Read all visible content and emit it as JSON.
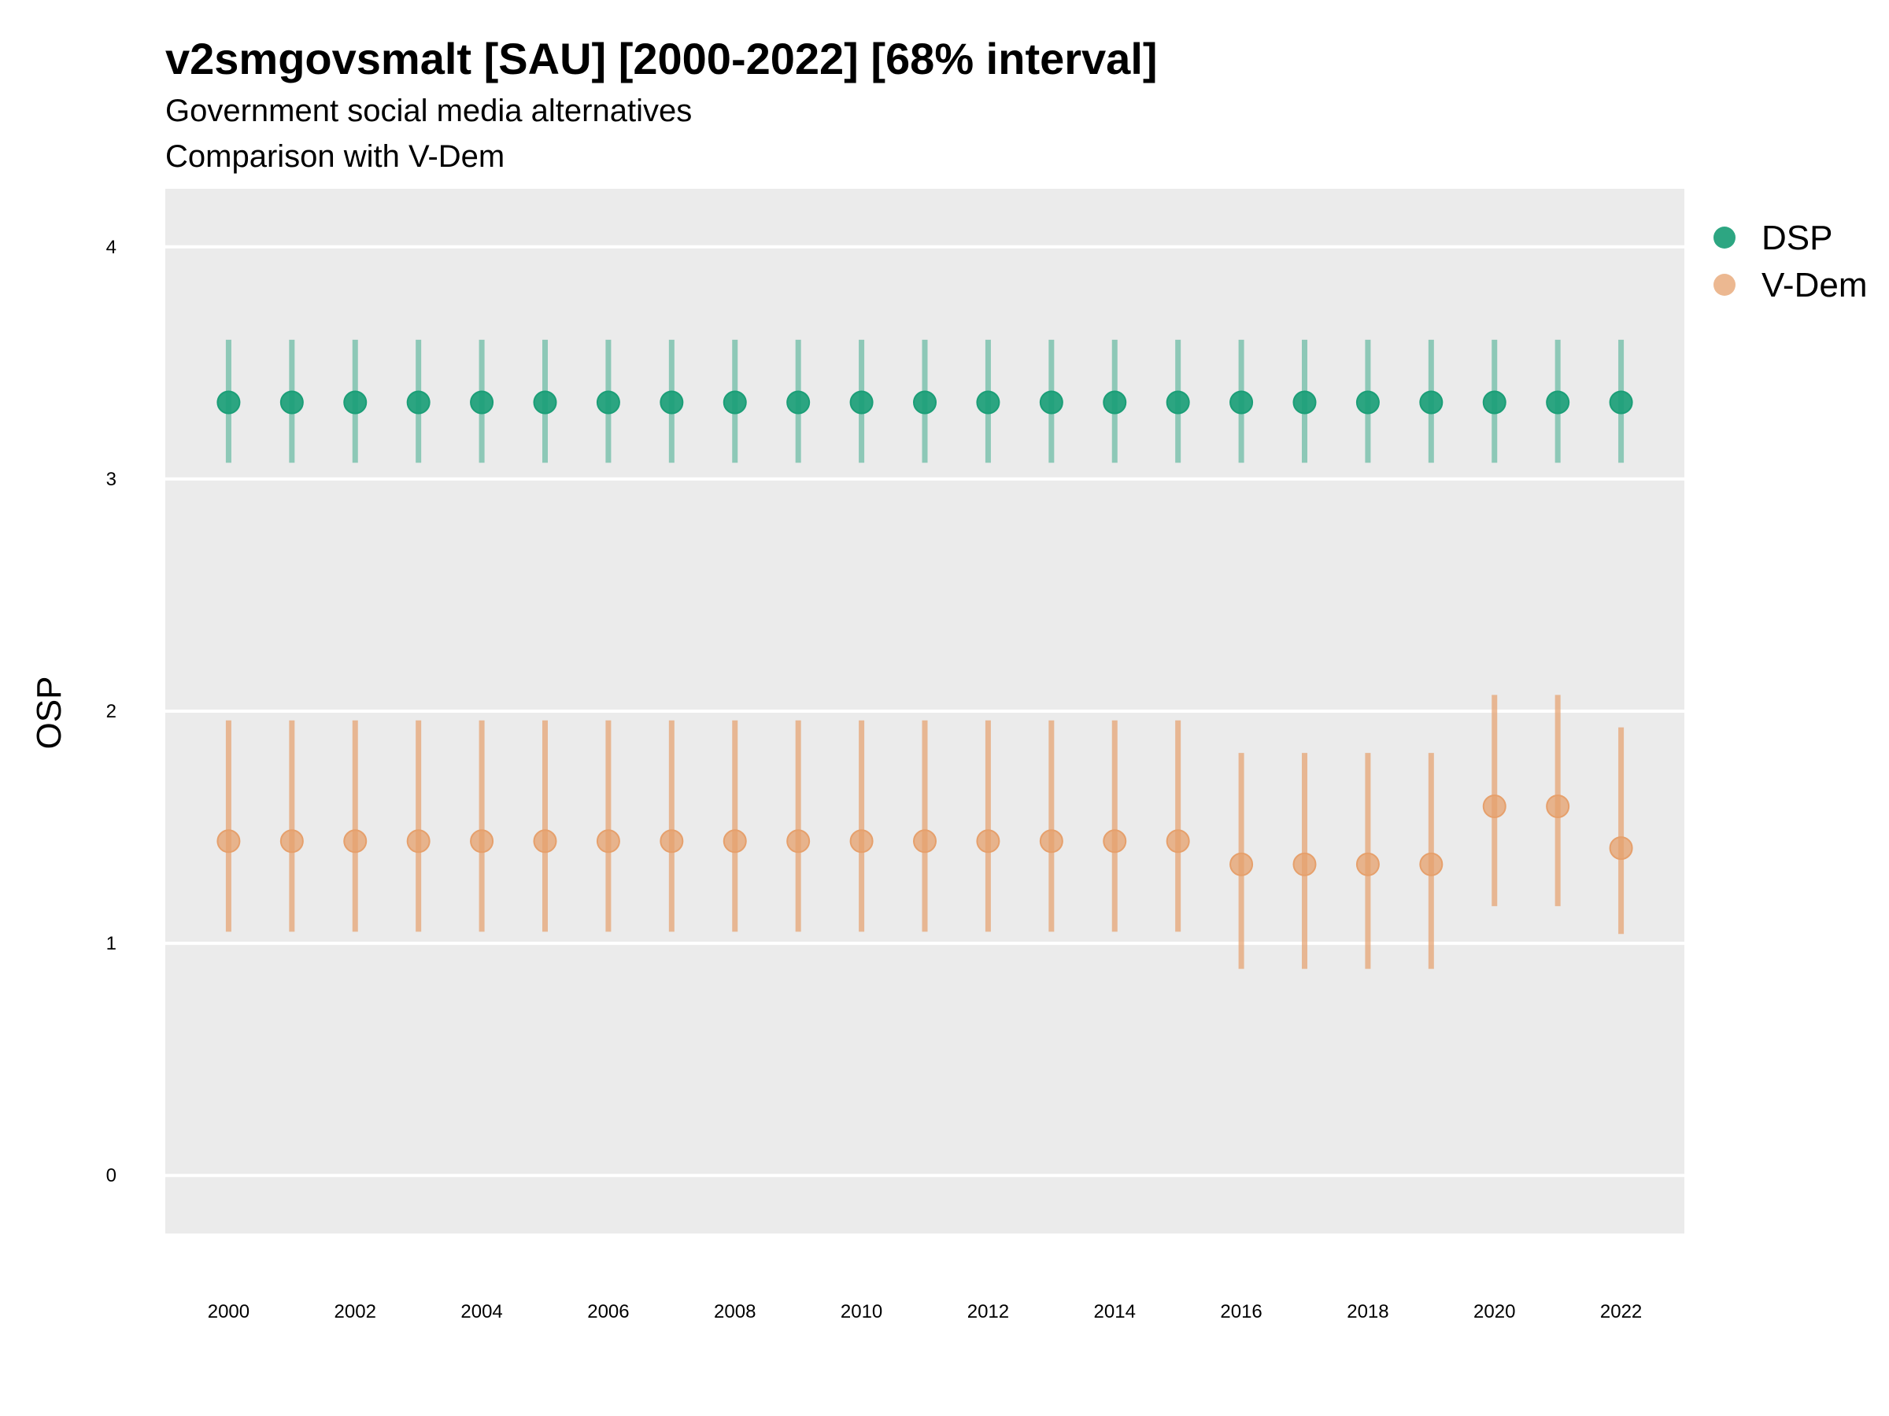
{
  "chart_data": {
    "type": "scatter",
    "title": "v2smgovsmalt [SAU] [2000-2022] [68% interval]",
    "subtitle": "Government social media alternatives",
    "subtitle2": "Comparison with V-Dem",
    "ylabel": "OSP",
    "xlabel": "",
    "ylim": [
      -0.25,
      4.25
    ],
    "xlim": [
      1999.0,
      2023.0
    ],
    "yticks": [
      0,
      1,
      2,
      3,
      4
    ],
    "xticks": [
      2000,
      2002,
      2004,
      2006,
      2008,
      2010,
      2012,
      2014,
      2016,
      2018,
      2020,
      2022
    ],
    "grid": true,
    "legend_position": "right",
    "x": [
      2000,
      2001,
      2002,
      2003,
      2004,
      2005,
      2006,
      2007,
      2008,
      2009,
      2010,
      2011,
      2012,
      2013,
      2014,
      2015,
      2016,
      2017,
      2018,
      2019,
      2020,
      2021,
      2022
    ],
    "series": [
      {
        "name": "DSP",
        "color": "#1b9e77",
        "values": [
          3.33,
          3.33,
          3.33,
          3.33,
          3.33,
          3.33,
          3.33,
          3.33,
          3.33,
          3.33,
          3.33,
          3.33,
          3.33,
          3.33,
          3.33,
          3.33,
          3.33,
          3.33,
          3.33,
          3.33,
          3.33,
          3.33,
          3.33
        ],
        "lower": [
          3.07,
          3.07,
          3.07,
          3.07,
          3.07,
          3.07,
          3.07,
          3.07,
          3.07,
          3.07,
          3.07,
          3.07,
          3.07,
          3.07,
          3.07,
          3.07,
          3.07,
          3.07,
          3.07,
          3.07,
          3.07,
          3.07,
          3.07
        ],
        "upper": [
          3.6,
          3.6,
          3.6,
          3.6,
          3.6,
          3.6,
          3.6,
          3.6,
          3.6,
          3.6,
          3.6,
          3.6,
          3.6,
          3.6,
          3.6,
          3.6,
          3.6,
          3.6,
          3.6,
          3.6,
          3.6,
          3.6,
          3.6
        ]
      },
      {
        "name": "V-Dem",
        "color": "#e6a06c",
        "values": [
          1.44,
          1.44,
          1.44,
          1.44,
          1.44,
          1.44,
          1.44,
          1.44,
          1.44,
          1.44,
          1.44,
          1.44,
          1.44,
          1.44,
          1.44,
          1.44,
          1.34,
          1.34,
          1.34,
          1.34,
          1.59,
          1.59,
          1.41
        ],
        "lower": [
          1.05,
          1.05,
          1.05,
          1.05,
          1.05,
          1.05,
          1.05,
          1.05,
          1.05,
          1.05,
          1.05,
          1.05,
          1.05,
          1.05,
          1.05,
          1.05,
          0.89,
          0.89,
          0.89,
          0.89,
          1.16,
          1.16,
          1.04
        ],
        "upper": [
          1.96,
          1.96,
          1.96,
          1.96,
          1.96,
          1.96,
          1.96,
          1.96,
          1.96,
          1.96,
          1.96,
          1.96,
          1.96,
          1.96,
          1.96,
          1.96,
          1.82,
          1.82,
          1.82,
          1.82,
          2.07,
          2.07,
          1.93
        ]
      }
    ]
  }
}
